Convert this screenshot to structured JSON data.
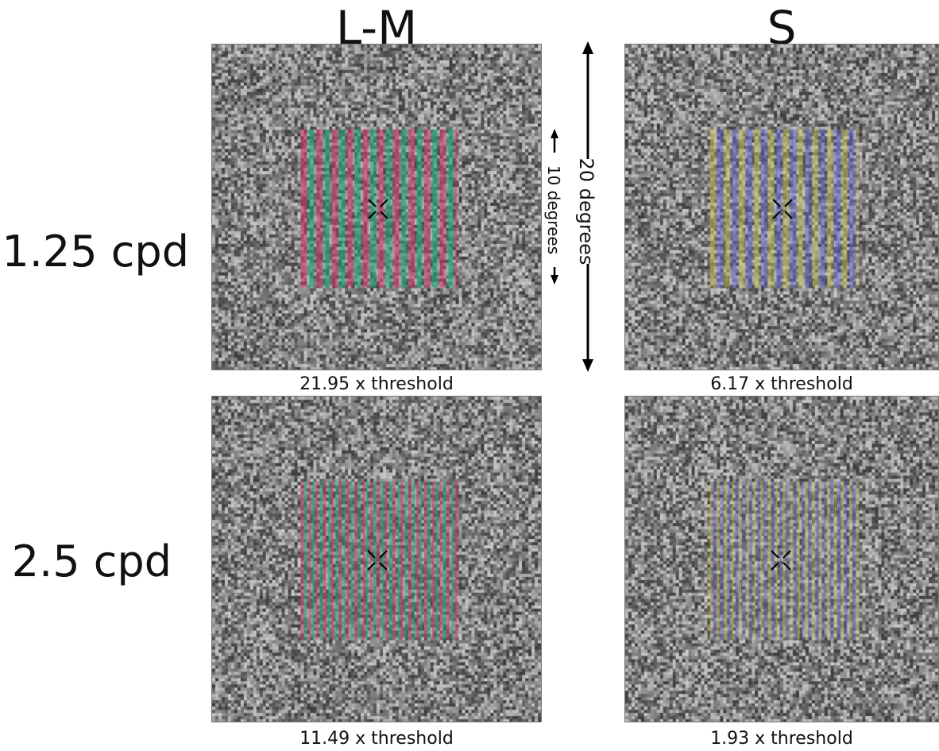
{
  "columns": [
    "L-M",
    "S"
  ],
  "rows": [
    "1.25 cpd",
    "2.5 cpd"
  ],
  "panels": [
    {
      "caption": "21.95 x threshold",
      "grating": "L-M",
      "frequency": "1.25 cpd"
    },
    {
      "caption": "6.17 x threshold",
      "grating": "S",
      "frequency": "1.25 cpd"
    },
    {
      "caption": "11.49 x threshold",
      "grating": "L-M",
      "frequency": "2.5 cpd"
    },
    {
      "caption": "1.93 x threshold",
      "grating": "S",
      "frequency": "2.5 cpd"
    }
  ],
  "annotations": {
    "outer_extent": "20 degrees",
    "inner_extent": "10 degrees"
  },
  "colors": {
    "lm_a": "#d2386e",
    "lm_b": "#1fa77a",
    "s_a": "#c9c251",
    "s_b": "#5f5fd8",
    "noise_dark": "#3c3c3c",
    "noise_light": "#c8c8c8"
  }
}
